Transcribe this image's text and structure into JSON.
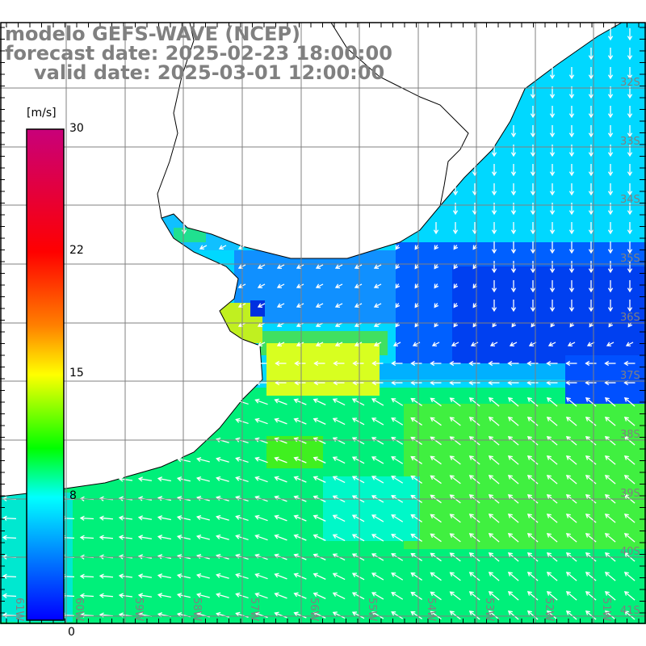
{
  "title": {
    "line1": "modelo GEFS-WAVE (NCEP)",
    "line2": "forecast date: 2025-02-23 18:00:00",
    "line3": "valid date: 2025-03-01 12:00:00"
  },
  "colorbar": {
    "unit": "[m/s]",
    "ticks": [
      "30",
      "22",
      "15",
      "8",
      "0"
    ],
    "colors": [
      "#c8007a",
      "#ff0000",
      "#ff8000",
      "#ffff00",
      "#00ff00",
      "#00ffff",
      "#0080ff",
      "#0000ff"
    ]
  },
  "lat_labels": [
    "32S",
    "33S",
    "34S",
    "35S",
    "36S",
    "37S",
    "38S",
    "39S",
    "40S",
    "41S"
  ],
  "lon_labels": [
    "61W",
    "60W",
    "59W",
    "58W",
    "57W",
    "56W",
    "55W",
    "54W",
    "53W",
    "52W",
    "51W"
  ],
  "colors": {
    "label": "#808080",
    "grid": "#808080",
    "land": "#ffffff",
    "coast": "#000000",
    "arrow": "#ffffff"
  }
}
